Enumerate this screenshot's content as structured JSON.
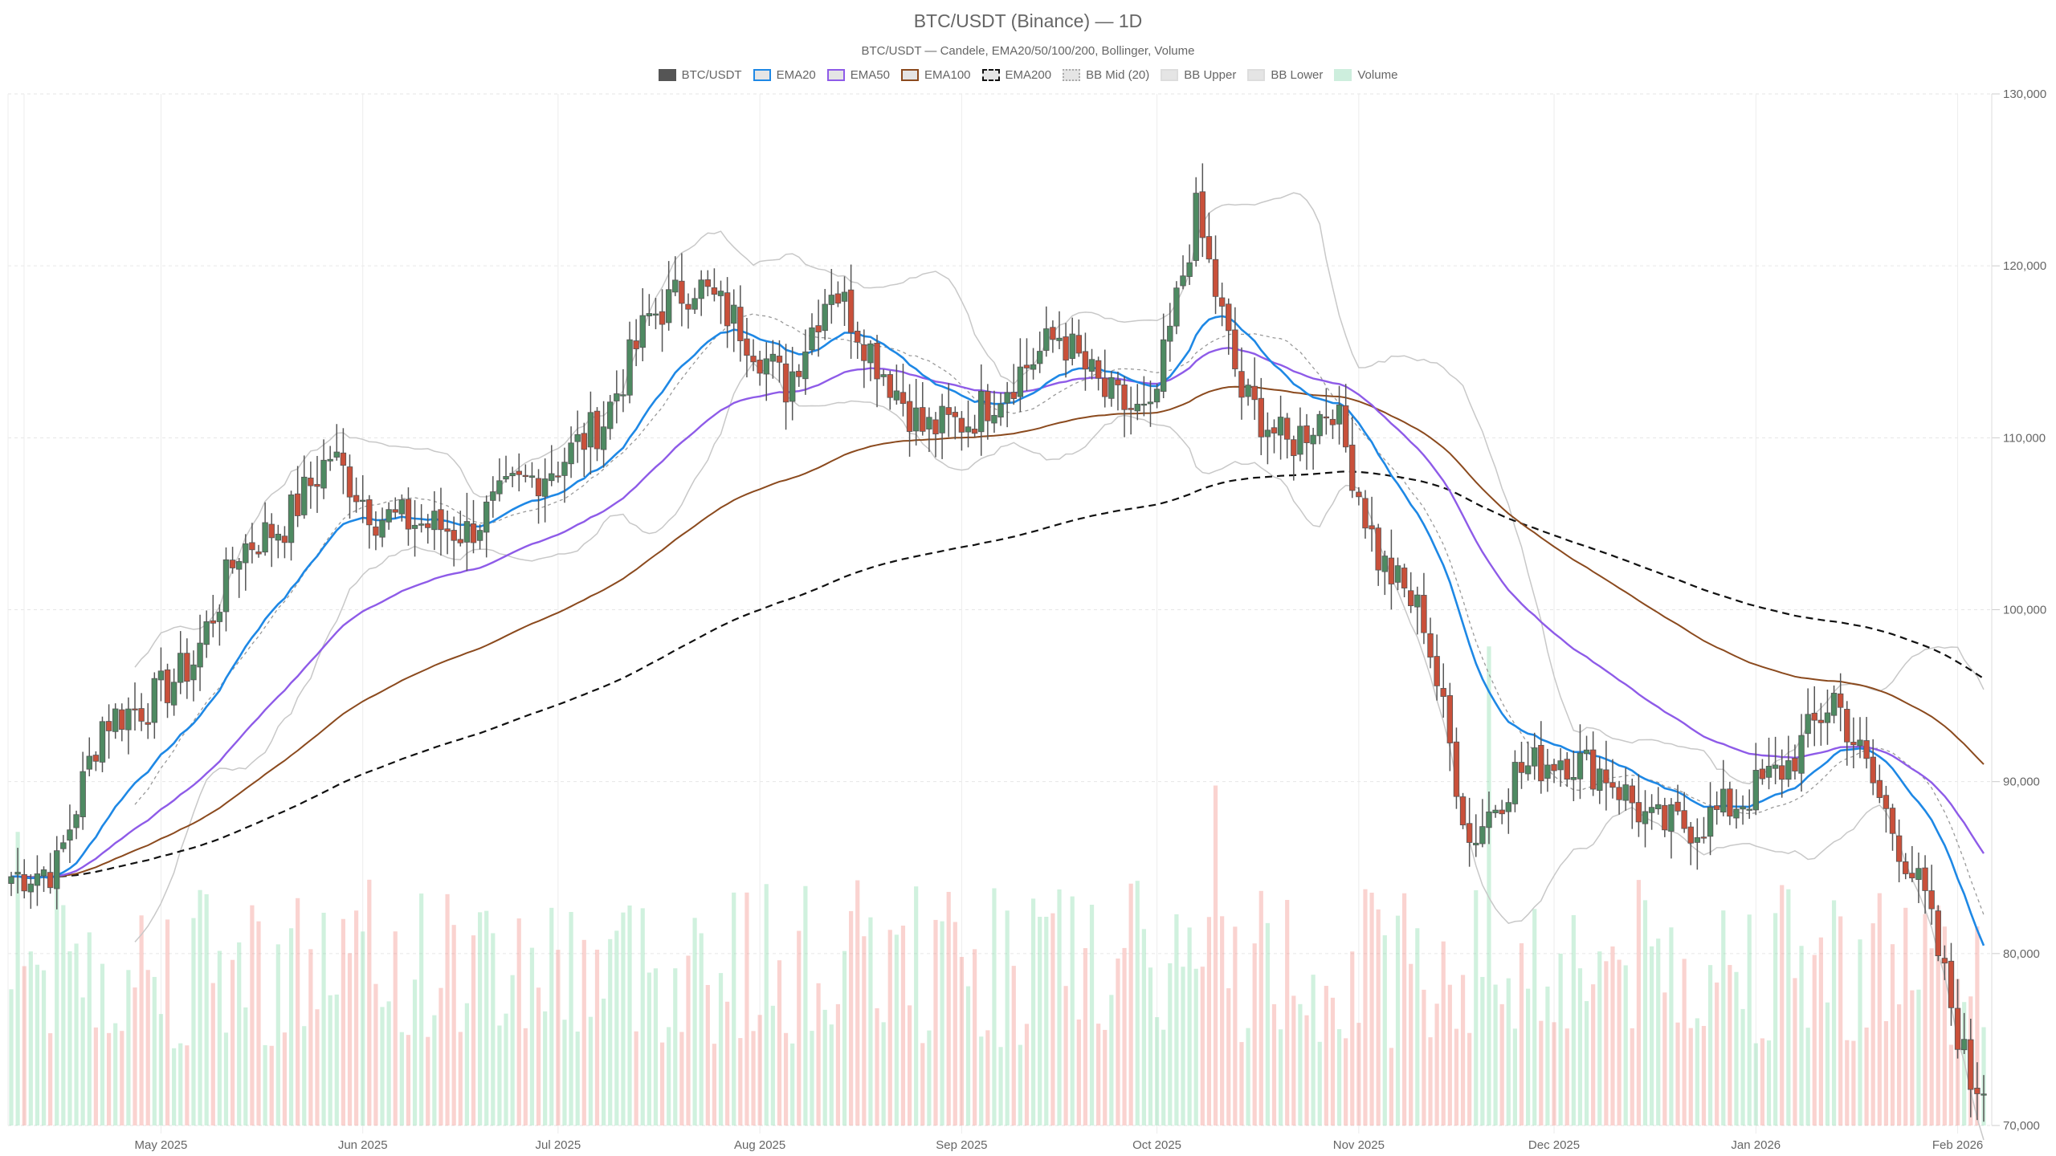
{
  "header": {
    "title": "BTC/USDT (Binance) — 1D",
    "subtitle": "BTC/USDT — Candele, EMA20/50/100/200, Bollinger, Volume"
  },
  "legend": [
    {
      "label": "BTC/USDT",
      "fill": "#555555",
      "border": "#555555",
      "style": "solid"
    },
    {
      "label": "EMA20",
      "fill": "#e5e5e5",
      "border": "#1e88e5",
      "style": "solid"
    },
    {
      "label": "EMA50",
      "fill": "#e5e5e5",
      "border": "#8e5be8",
      "style": "solid"
    },
    {
      "label": "EMA100",
      "fill": "#e5e5e5",
      "border": "#8b4a1e",
      "style": "solid"
    },
    {
      "label": "EMA200",
      "fill": "#e5e5e5",
      "border": "#111111",
      "style": "dashed"
    },
    {
      "label": "BB Mid (20)",
      "fill": "#e5e5e5",
      "border": "#aaaaaa",
      "style": "dotted"
    },
    {
      "label": "BB Upper",
      "fill": "#e5e5e5",
      "border": "#dddddd",
      "style": "solid"
    },
    {
      "label": "BB Lower",
      "fill": "#e5e5e5",
      "border": "#dddddd",
      "style": "solid"
    },
    {
      "label": "Volume",
      "fill": "#cdeedd",
      "border": "#cdeedd",
      "style": "solid"
    }
  ],
  "colors": {
    "up": "#4e8a62",
    "down": "#c9503a",
    "wick": "#555555",
    "ema20": "#1e88e5",
    "ema50": "#8e5be8",
    "ema100": "#8b4a1e",
    "ema200": "#111111",
    "bb_band": "#c8c8c8",
    "bb_mid": "#999999",
    "vol_up": "rgba(120,215,160,0.35)",
    "vol_down": "rgba(240,130,120,0.35)",
    "grid": "#e6e6e6"
  },
  "chart_data": {
    "type": "candlestick",
    "title": "BTC/USDT (Binance) — 1D",
    "subtitle": "BTC/USDT — Candele, EMA20/50/100/200, Bollinger, Volume",
    "xlabel": "",
    "ylabel": "",
    "ylim": [
      70000,
      130000
    ],
    "y_ticks": [
      "70,000",
      "80,000",
      "90,000",
      "100,000",
      "110,000",
      "120,000",
      "130,000"
    ],
    "x_ticks": [
      "May 2025",
      "Jun 2025",
      "Jul 2025",
      "Aug 2025",
      "Sep 2025",
      "Oct 2025",
      "Nov 2025",
      "Dec 2025",
      "Jan 2026",
      "Feb 2026"
    ],
    "grid": true,
    "legend_position": "top",
    "series_names": [
      "BTC/USDT",
      "EMA20",
      "EMA50",
      "EMA100",
      "EMA200",
      "BB Mid (20)",
      "BB Upper",
      "BB Lower",
      "Volume"
    ],
    "close_weekly_approx": {
      "x": [
        "2025-04-08",
        "2025-04-15",
        "2025-04-22",
        "2025-04-29",
        "2025-05-06",
        "2025-05-13",
        "2025-05-20",
        "2025-05-27",
        "2025-06-03",
        "2025-06-10",
        "2025-06-17",
        "2025-06-24",
        "2025-07-01",
        "2025-07-08",
        "2025-07-15",
        "2025-07-22",
        "2025-07-29",
        "2025-08-05",
        "2025-08-12",
        "2025-08-19",
        "2025-08-26",
        "2025-09-02",
        "2025-09-09",
        "2025-09-16",
        "2025-09-23",
        "2025-09-30",
        "2025-10-07",
        "2025-10-14",
        "2025-10-21",
        "2025-10-28",
        "2025-11-04",
        "2025-11-11",
        "2025-11-18",
        "2025-11-25",
        "2025-12-02",
        "2025-12-09",
        "2025-12-16",
        "2025-12-23",
        "2025-12-30",
        "2026-01-06",
        "2026-01-13",
        "2026-01-20",
        "2026-01-27",
        "2026-02-03"
      ],
      "values": [
        84500,
        85000,
        93500,
        94500,
        97000,
        103500,
        105000,
        109000,
        105500,
        105000,
        104500,
        107000,
        108500,
        111000,
        117000,
        119000,
        116500,
        113000,
        119000,
        114500,
        110500,
        111000,
        113500,
        116000,
        112500,
        111000,
        123000,
        112500,
        109500,
        112000,
        103000,
        99500,
        86500,
        90500,
        91500,
        90500,
        87500,
        87500,
        89000,
        91000,
        95000,
        89000,
        83000,
        72500
      ]
    },
    "ema_approx": {
      "EMA20": {
        "start": 85000,
        "peak": 118500,
        "end": 83000
      },
      "EMA50": {
        "start": 85000,
        "peak": 116000,
        "end": 87500
      },
      "EMA100": {
        "start": 85000,
        "peak": 113500,
        "end": 92000
      },
      "EMA200": {
        "start": 85000,
        "peak": 108300,
        "end": 96800
      }
    },
    "volume_note": "relative bars along bottom half, up=green, down=red; largest spike ~Nov 21 2025"
  }
}
